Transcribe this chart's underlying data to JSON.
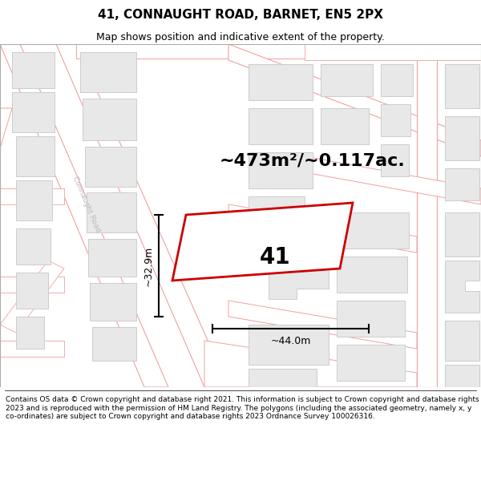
{
  "title": "41, CONNAUGHT ROAD, BARNET, EN5 2PX",
  "subtitle": "Map shows position and indicative extent of the property.",
  "area_label": "~473m²/~0.117ac.",
  "plot_number": "41",
  "width_label": "~44.0m",
  "height_label": "~32.9m",
  "footer": "Contains OS data © Crown copyright and database right 2021. This information is subject to Crown copyright and database rights 2023 and is reproduced with the permission of HM Land Registry. The polygons (including the associated geometry, namely x, y co-ordinates) are subject to Crown copyright and database rights 2023 Ordnance Survey 100026316.",
  "map_bg": "#ffffff",
  "road_line_color": "#f0a0a0",
  "building_fill": "#e8e8e8",
  "building_edge": "#cccccc",
  "plot_color": "#cc0000",
  "road_label_color": "#bbbbbb",
  "title_fontsize": 11,
  "subtitle_fontsize": 9,
  "area_fontsize": 16,
  "plot_num_fontsize": 20,
  "dim_fontsize": 9,
  "footer_fontsize": 6.5
}
